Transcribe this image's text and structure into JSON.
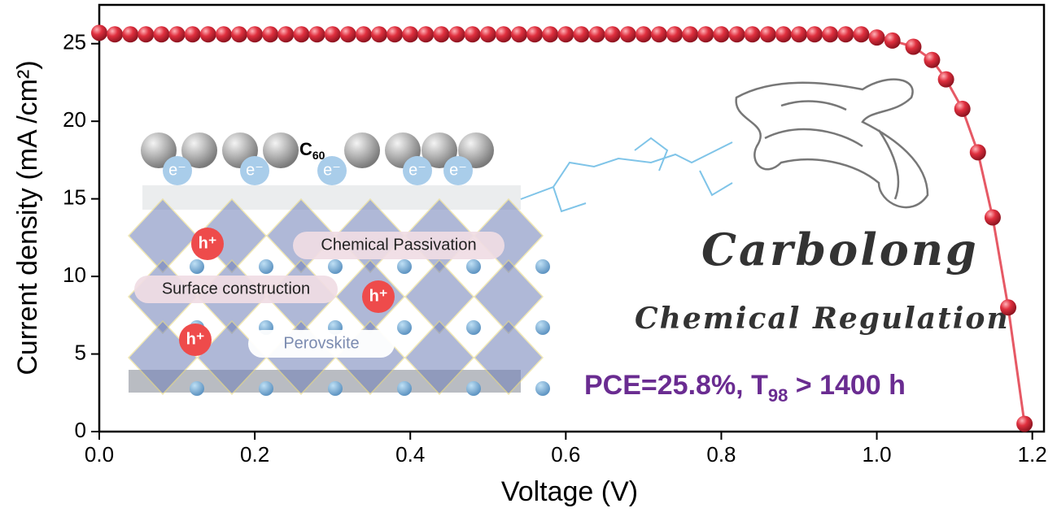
{
  "chart_data": {
    "type": "line",
    "xlabel": "Voltage (V)",
    "ylabel": "Current density (mA /cm²)",
    "x": [
      0,
      0.02,
      0.04,
      0.06,
      0.08,
      0.1,
      0.12,
      0.14,
      0.16,
      0.18,
      0.2,
      0.22,
      0.24,
      0.26,
      0.28,
      0.3,
      0.32,
      0.34,
      0.36,
      0.38,
      0.4,
      0.42,
      0.44,
      0.46,
      0.48,
      0.5,
      0.52,
      0.54,
      0.56,
      0.58,
      0.6,
      0.62,
      0.64,
      0.66,
      0.68,
      0.7,
      0.72,
      0.74,
      0.76,
      0.78,
      0.8,
      0.82,
      0.84,
      0.86,
      0.88,
      0.9,
      0.92,
      0.94,
      0.96,
      0.98,
      1.0,
      1.02,
      1.047,
      1.071,
      1.089,
      1.11,
      1.13,
      1.149,
      1.169,
      1.19
    ],
    "values": [
      25.7,
      25.6,
      25.6,
      25.6,
      25.6,
      25.6,
      25.6,
      25.6,
      25.6,
      25.6,
      25.6,
      25.6,
      25.6,
      25.6,
      25.6,
      25.6,
      25.6,
      25.6,
      25.6,
      25.6,
      25.6,
      25.6,
      25.6,
      25.6,
      25.6,
      25.6,
      25.6,
      25.6,
      25.6,
      25.6,
      25.6,
      25.6,
      25.6,
      25.6,
      25.6,
      25.6,
      25.6,
      25.6,
      25.6,
      25.6,
      25.6,
      25.6,
      25.6,
      25.6,
      25.6,
      25.6,
      25.6,
      25.6,
      25.6,
      25.6,
      25.4,
      25.2,
      24.8,
      23.95,
      22.7,
      20.8,
      18.0,
      13.8,
      8.0,
      0.5
    ],
    "color": "#e0303f",
    "xlim": [
      0,
      1.215
    ],
    "ylim": [
      0,
      27.5
    ],
    "xticks": [
      {
        "value": 0,
        "label": "0.0"
      },
      0.2,
      0.4,
      0.6,
      0.8,
      {
        "value": 1,
        "label": "1.0"
      },
      1.2
    ],
    "yticks": [
      0,
      5,
      10,
      15,
      20,
      25
    ],
    "annotations": {
      "c60": "C",
      "c60_sub": "60",
      "electron": "e⁻",
      "hole": "h⁺",
      "passivation": "Chemical Passivation",
      "surface": "Surface construction",
      "perovskite": "Perovskite",
      "brand": "Carbolong",
      "regulation": "Chemical Regulation",
      "pce_a": "PCE=25.8%,  T",
      "pce_sub": "98",
      "pce_b": " > 1400 h"
    }
  }
}
